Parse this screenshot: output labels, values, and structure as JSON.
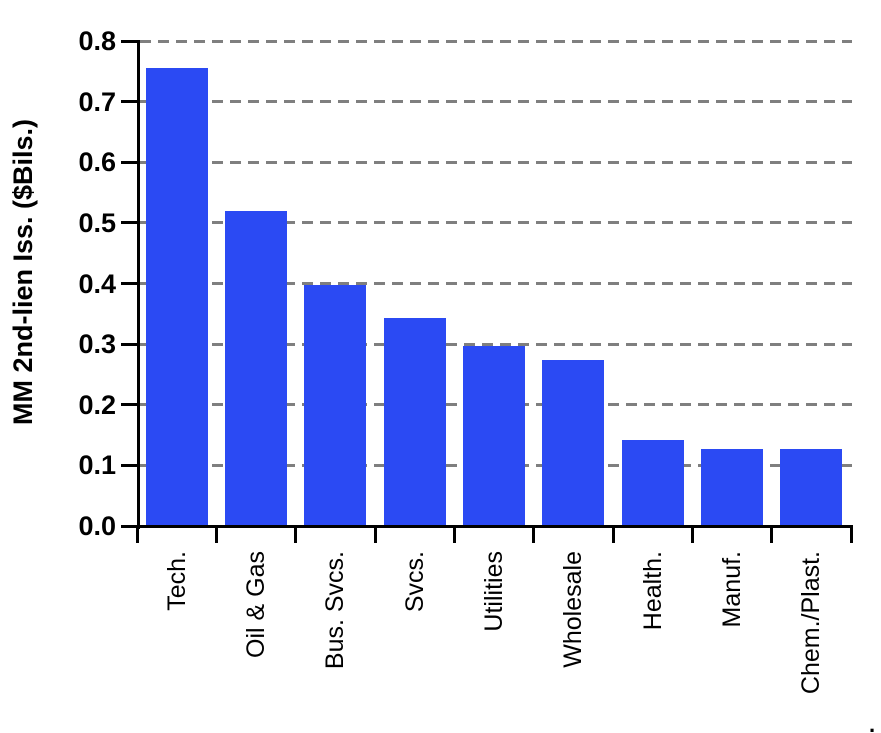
{
  "chart_data": {
    "type": "bar",
    "categories": [
      "Tech.",
      "Oil & Gas",
      "Bus. Svcs.",
      "Svcs.",
      "Utilities",
      "Wholesale",
      "Health.",
      "Manuf.",
      "Chem./Plast."
    ],
    "values": [
      0.755,
      0.52,
      0.398,
      0.343,
      0.297,
      0.273,
      0.142,
      0.127,
      0.127
    ],
    "title": "",
    "xlabel": "",
    "ylabel": "MM 2nd-lien Iss. ($Bils.)",
    "ylim": [
      0,
      0.8
    ],
    "ytick_step": 0.1,
    "ytick_labels": [
      "0.0",
      "0.1",
      "0.2",
      "0.3",
      "0.4",
      "0.5",
      "0.6",
      "0.7",
      "0.8"
    ],
    "grid": "horizontal-dashed",
    "legend_position": "none",
    "colors": {
      "bar": "#2b4af3",
      "gridline": "#7f7f7f",
      "axis": "#000000",
      "text": "#000000",
      "background": "#ffffff"
    }
  },
  "misc": {
    "corner_mark": "."
  }
}
